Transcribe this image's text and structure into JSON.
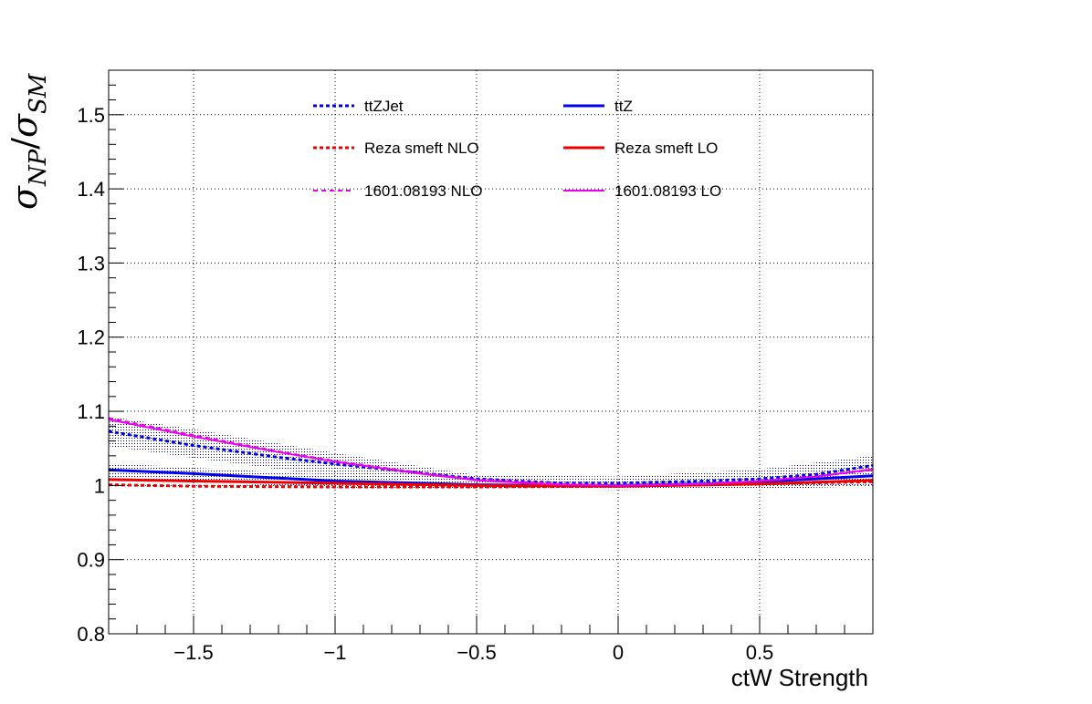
{
  "chart_data": {
    "type": "line",
    "xlabel": "ctW Strength",
    "ylabel_main": "σ",
    "ylabel_num_sub": "NP",
    "ylabel_slash": "/",
    "ylabel_den_sub": "SM",
    "xlim": [
      -1.8,
      0.9
    ],
    "ylim": [
      0.8,
      1.56
    ],
    "x_ticks": [
      -1.5,
      -1,
      -0.5,
      0,
      0.5
    ],
    "x_tick_labels": [
      "−1.5",
      "−1",
      "−0.5",
      "0",
      "0.5"
    ],
    "y_ticks": [
      0.8,
      0.9,
      1.0,
      1.1,
      1.2,
      1.3,
      1.4,
      1.5
    ],
    "y_tick_labels": [
      "0.8",
      "0.9",
      "1",
      "1.1",
      "1.2",
      "1.3",
      "1.4",
      "1.5"
    ],
    "grid": true,
    "legend_position": "top",
    "bands": [
      {
        "x": [
          -1.8,
          -1.5,
          -1.0,
          -0.5,
          0.0,
          0.5,
          0.9
        ],
        "low": [
          1.053,
          1.037,
          1.012,
          0.996,
          0.994,
          0.998,
          1.01
        ],
        "high": [
          1.093,
          1.076,
          1.044,
          1.014,
          1.012,
          1.022,
          1.04
        ],
        "color": "#00007a",
        "pattern": "hatch"
      },
      {
        "x": [
          -1.8,
          -1.5,
          -1.0,
          -0.5,
          0.0,
          0.5,
          0.9
        ],
        "low": [
          1.01,
          1.004,
          0.997,
          0.995,
          0.994,
          0.995,
          0.999
        ],
        "high": [
          1.03,
          1.024,
          1.014,
          1.007,
          1.006,
          1.012,
          1.025
        ],
        "color": "#00007a",
        "pattern": "hatch"
      }
    ],
    "series": [
      {
        "name": "ttZJet",
        "color": "#0000ee",
        "dash": "4,3",
        "width": 3,
        "x": [
          -1.8,
          -1.5,
          -1.2,
          -1.0,
          -0.7,
          -0.5,
          -0.2,
          0.0,
          0.3,
          0.5,
          0.7,
          0.9
        ],
        "y": [
          1.073,
          1.054,
          1.038,
          1.029,
          1.017,
          1.009,
          1.003,
          1.003,
          1.006,
          1.009,
          1.015,
          1.027
        ]
      },
      {
        "name": "ttZ",
        "color": "#0000ee",
        "dash": "",
        "width": 3,
        "x": [
          -1.8,
          -1.5,
          -1.2,
          -1.0,
          -0.7,
          -0.5,
          -0.2,
          0.0,
          0.3,
          0.5,
          0.7,
          0.9
        ],
        "y": [
          1.021,
          1.016,
          1.01,
          1.006,
          1.003,
          1.001,
          1.0,
          1.0,
          1.002,
          1.005,
          1.009,
          1.013
        ]
      },
      {
        "name": "Reza smeft NLO",
        "color": "#ee0000",
        "dash": "4,3",
        "width": 3,
        "x": [
          -1.8,
          -1.5,
          -1.0,
          -0.5,
          0.0,
          0.5,
          0.9
        ],
        "y": [
          1.001,
          0.999,
          0.998,
          0.998,
          0.999,
          1.002,
          1.005
        ]
      },
      {
        "name": "Reza smeft LO",
        "color": "#ee0000",
        "dash": "",
        "width": 3,
        "x": [
          -1.8,
          -1.5,
          -1.0,
          -0.5,
          0.0,
          0.5,
          0.9
        ],
        "y": [
          1.008,
          1.006,
          1.003,
          1.0,
          0.999,
          1.002,
          1.007
        ]
      },
      {
        "name": "1601.08193 NLO",
        "color": "#ee00ee",
        "dash": "5,4",
        "width": 2,
        "x": [
          -1.8,
          -1.5,
          -1.2,
          -1.0,
          -0.7,
          -0.5,
          -0.2,
          0.0,
          0.3,
          0.5,
          0.7,
          0.9
        ],
        "y": [
          1.091,
          1.068,
          1.046,
          1.033,
          1.017,
          1.008,
          1.002,
          1.0,
          1.002,
          1.006,
          1.012,
          1.021
        ]
      },
      {
        "name": "1601.08193 LO",
        "color": "#ee00ee",
        "dash": "",
        "width": 2,
        "x": [
          -1.8,
          -1.5,
          -1.2,
          -1.0,
          -0.7,
          -0.5,
          -0.2,
          0.0,
          0.3,
          0.5,
          0.7,
          0.9
        ],
        "y": [
          1.089,
          1.066,
          1.045,
          1.032,
          1.016,
          1.007,
          1.001,
          1.0,
          1.002,
          1.006,
          1.012,
          1.022
        ]
      }
    ],
    "legend": [
      {
        "label": "ttZJet",
        "color": "#0000ee",
        "dash": "4,3",
        "width": 3
      },
      {
        "label": "ttZ",
        "color": "#0000ee",
        "dash": "",
        "width": 3
      },
      {
        "label": "Reza smeft NLO",
        "color": "#ee0000",
        "dash": "4,3",
        "width": 3
      },
      {
        "label": "Reza smeft LO",
        "color": "#ee0000",
        "dash": "",
        "width": 3
      },
      {
        "label": "1601.08193 NLO",
        "color": "#ee00ee",
        "dash": "5,4",
        "width": 2
      },
      {
        "label": "1601.08193 LO",
        "color": "#ee00ee",
        "dash": "",
        "width": 2
      }
    ]
  }
}
